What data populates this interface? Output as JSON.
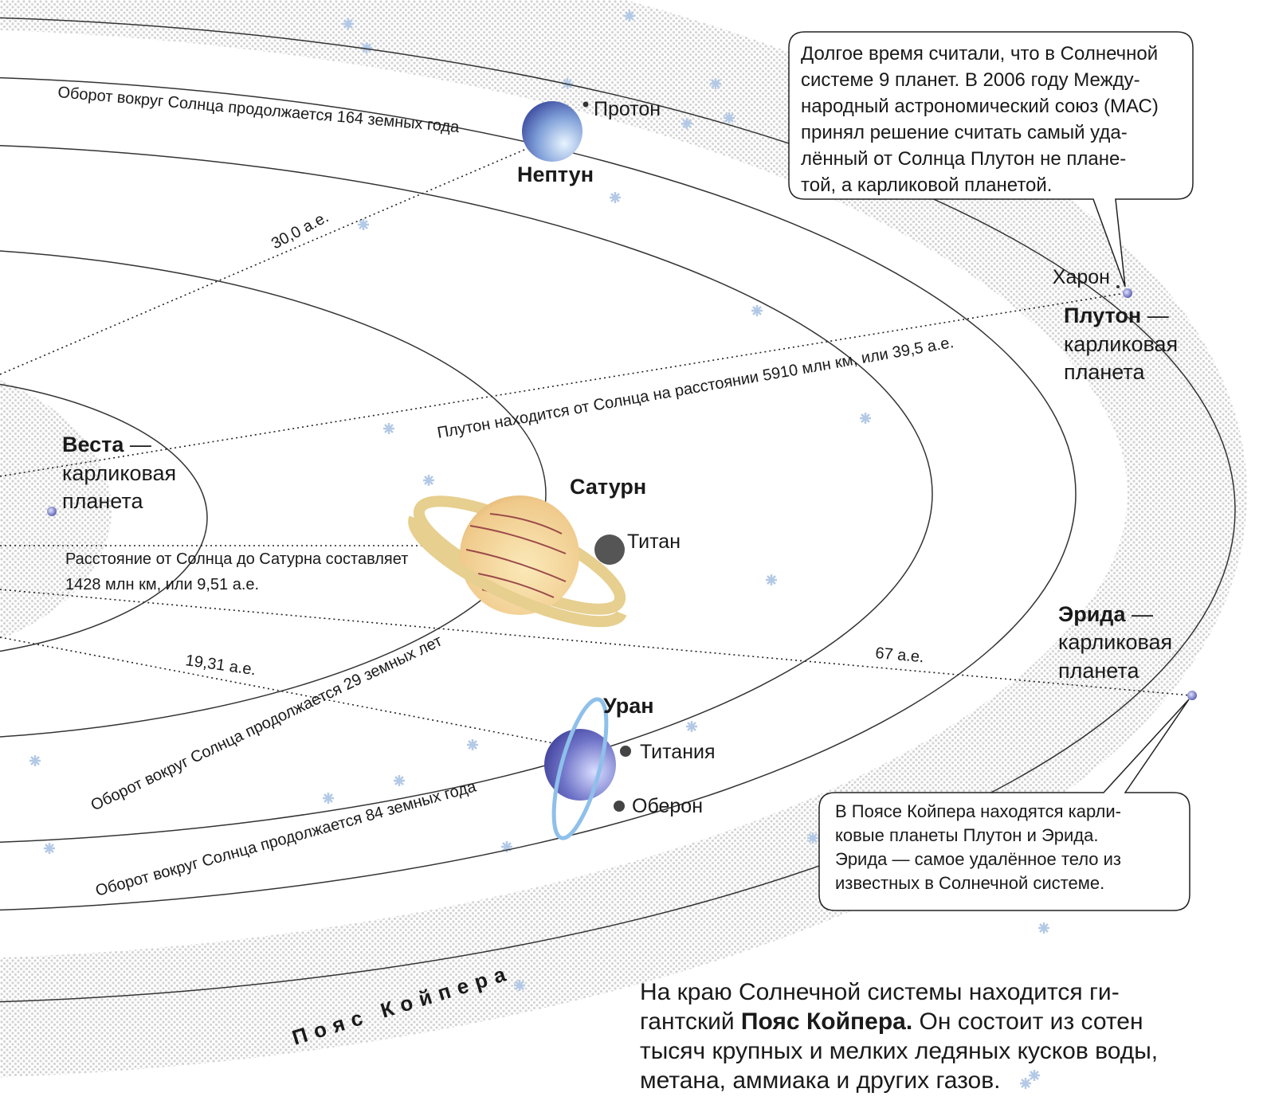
{
  "orbit_labels": {
    "neptune": "Оборот вокруг Солнца продолжается 164 земных года",
    "saturn": "Оборот вокруг Солнца продолжается 29 земных лет",
    "uranus": "Оборот вокруг Солнца продолжается 84 земных года"
  },
  "distances": {
    "neptune": "30,0 а.е.",
    "pluto": "Плутон находится от Солнца на расстоянии 5910 млн км, или 39,5 а.е.",
    "saturn": [
      "Расстояние от Солнца до Сатурна составляет",
      "1428 млн км, или 9,51 а.е."
    ],
    "uranus": "19,31 а.е.",
    "eris": "67 а.е."
  },
  "bodies": {
    "neptune": "Нептун",
    "proton": "Протон",
    "charon": "Харон",
    "pluto": {
      "name": "Плутон",
      "dash": " —",
      "lines": [
        "карликовая",
        "планета"
      ]
    },
    "vesta": {
      "name": "Веста",
      "dash": " —",
      "lines": [
        "карликовая",
        "планета"
      ]
    },
    "saturn": "Сатурн",
    "titan": "Титан",
    "eris": {
      "name": "Эрида",
      "dash": " —",
      "lines": [
        "карликовая",
        "планета"
      ]
    },
    "uranus": "Уран",
    "titania": "Титания",
    "oberon": "Оберон"
  },
  "notes": [
    [
      "Долгое время считали, что в Солнечной",
      "системе 9 планет. В 2006 году Между-",
      "народный астрономический союз (МАС)",
      "принял решение считать самый уда-",
      "лённый от Солнца Плутон не плане-",
      "той, а карликовой планетой."
    ],
    [
      "В Поясе Койпера находятся карли-",
      "ковые планеты Плутон и Эрида.",
      "Эрида — самое удалённое тело из",
      "известных в Солнечной системе."
    ]
  ],
  "belt": "Пояс Койпера",
  "paragraph": {
    "line1": "На краю Солнечной системы находится ги-",
    "line2": [
      "гантский ",
      "Пояс Койпера.",
      " Он состоит из сотен"
    ],
    "line3": "тысяч крупных и мелких ледяных кусков воды,",
    "line4": "метана, аммиака и других газов."
  }
}
